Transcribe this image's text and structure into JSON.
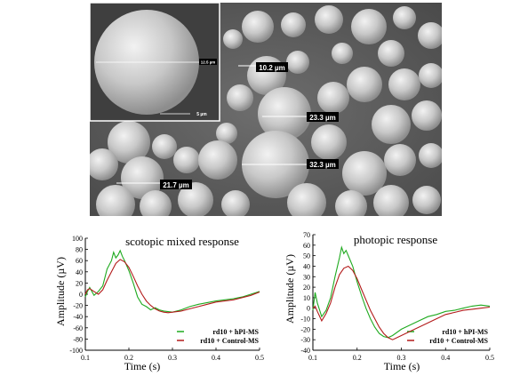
{
  "micrograph": {
    "measurements": [
      "10.2 µm",
      "23.3 µm",
      "32.3 µm",
      "21.7 µm"
    ],
    "inset": {
      "diameter_label": "12.5 µm",
      "scale_bar_label": "5 µm"
    }
  },
  "colors": {
    "hpi_ms": "#1faa1f",
    "control_ms": "#b31b1b",
    "sem_background": "#5a5a5a",
    "sphere": "#cfcfcf"
  },
  "chart_data": [
    {
      "type": "line",
      "title": "scotopic mixed response",
      "xlabel": "Time (s)",
      "ylabel": "Amplitude (µV)",
      "xlim": [
        0.1,
        0.5
      ],
      "ylim": [
        -100,
        100
      ],
      "xticks": [
        "0.1",
        "0.2",
        "0.3",
        "0.4",
        "0.5"
      ],
      "yticks": [
        "100",
        "80",
        "60",
        "40",
        "20",
        "0",
        "-20",
        "-40",
        "-60",
        "-80",
        "-100"
      ],
      "legend_position": "bottom-right",
      "series": [
        {
          "name": "rd10 + hPI-MS",
          "color": "#1faa1f",
          "x": [
            0.1,
            0.105,
            0.11,
            0.12,
            0.13,
            0.14,
            0.15,
            0.16,
            0.165,
            0.17,
            0.175,
            0.18,
            0.185,
            0.19,
            0.2,
            0.21,
            0.22,
            0.23,
            0.24,
            0.25,
            0.26,
            0.27,
            0.28,
            0.3,
            0.32,
            0.34,
            0.36,
            0.38,
            0.4,
            0.42,
            0.44,
            0.46,
            0.48,
            0.5
          ],
          "y": [
            -5,
            5,
            12,
            -2,
            5,
            15,
            45,
            60,
            75,
            65,
            70,
            78,
            68,
            60,
            42,
            20,
            -5,
            -18,
            -22,
            -28,
            -24,
            -28,
            -30,
            -32,
            -28,
            -22,
            -18,
            -15,
            -12,
            -10,
            -8,
            -5,
            0,
            5
          ]
        },
        {
          "name": "rd10 + Control-MS",
          "color": "#b31b1b",
          "x": [
            0.1,
            0.105,
            0.11,
            0.12,
            0.13,
            0.14,
            0.15,
            0.16,
            0.17,
            0.18,
            0.19,
            0.2,
            0.21,
            0.22,
            0.23,
            0.24,
            0.25,
            0.26,
            0.27,
            0.28,
            0.29,
            0.3,
            0.32,
            0.34,
            0.36,
            0.38,
            0.4,
            0.42,
            0.44,
            0.46,
            0.48,
            0.5
          ],
          "y": [
            0,
            8,
            10,
            5,
            0,
            8,
            25,
            40,
            55,
            62,
            58,
            48,
            32,
            15,
            0,
            -12,
            -20,
            -26,
            -30,
            -32,
            -33,
            -32,
            -30,
            -26,
            -22,
            -18,
            -14,
            -12,
            -10,
            -6,
            -2,
            4
          ]
        }
      ]
    },
    {
      "type": "line",
      "title": "photopic response",
      "xlabel": "Time (s)",
      "ylabel": "Amplitude (µV)",
      "xlim": [
        0.1,
        0.5
      ],
      "ylim": [
        -40,
        70
      ],
      "xticks": [
        "0.1",
        "0.2",
        "0.3",
        "0.4",
        "0.5"
      ],
      "yticks": [
        "70",
        "60",
        "50",
        "40",
        "30",
        "20",
        "10",
        "0",
        "-10",
        "-20",
        "-30",
        "-40"
      ],
      "legend_position": "bottom-right",
      "series": [
        {
          "name": "rd10 + hPI-MS",
          "color": "#1faa1f",
          "x": [
            0.1,
            0.105,
            0.11,
            0.12,
            0.13,
            0.14,
            0.15,
            0.16,
            0.165,
            0.17,
            0.175,
            0.18,
            0.19,
            0.2,
            0.21,
            0.22,
            0.23,
            0.24,
            0.25,
            0.26,
            0.27,
            0.28,
            0.3,
            0.32,
            0.34,
            0.36,
            0.38,
            0.4,
            0.42,
            0.44,
            0.46,
            0.48,
            0.5
          ],
          "y": [
            -2,
            15,
            5,
            -8,
            -2,
            10,
            30,
            48,
            58,
            52,
            55,
            50,
            40,
            25,
            12,
            0,
            -10,
            -18,
            -24,
            -27,
            -28,
            -26,
            -20,
            -16,
            -12,
            -8,
            -6,
            -3,
            -2,
            0,
            2,
            3,
            2
          ]
        },
        {
          "name": "rd10 + Control-MS",
          "color": "#b31b1b",
          "x": [
            0.1,
            0.105,
            0.11,
            0.12,
            0.13,
            0.14,
            0.15,
            0.16,
            0.17,
            0.18,
            0.19,
            0.2,
            0.21,
            0.22,
            0.23,
            0.24,
            0.25,
            0.26,
            0.27,
            0.28,
            0.3,
            0.32,
            0.34,
            0.36,
            0.38,
            0.4,
            0.42,
            0.44,
            0.46,
            0.48,
            0.5
          ],
          "y": [
            0,
            2,
            -3,
            -12,
            -5,
            5,
            20,
            32,
            38,
            40,
            36,
            28,
            18,
            8,
            -2,
            -10,
            -18,
            -24,
            -28,
            -30,
            -26,
            -22,
            -18,
            -14,
            -10,
            -6,
            -4,
            -2,
            -1,
            0,
            1
          ]
        }
      ]
    }
  ]
}
